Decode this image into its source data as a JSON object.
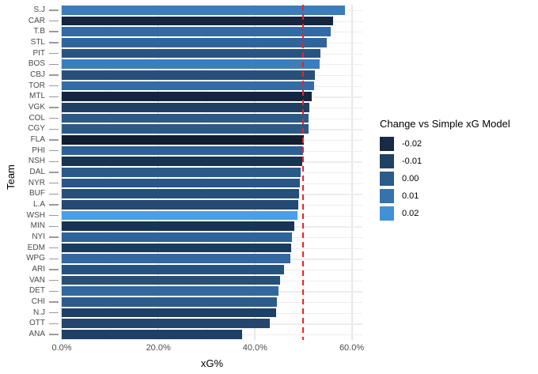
{
  "chart_data": {
    "type": "bar",
    "orientation": "horizontal",
    "title": "",
    "xlabel": "xG%",
    "ylabel": "Team",
    "xlim": [
      0,
      62.2
    ],
    "grid": true,
    "x_ticks": [
      {
        "value": 0,
        "label": "0.0%"
      },
      {
        "value": 20,
        "label": "20.0%"
      },
      {
        "value": 40,
        "label": "40.0%"
      },
      {
        "value": 60,
        "label": "60.0%"
      }
    ],
    "x_minor_ticks": [
      10,
      30,
      50
    ],
    "reference_line": {
      "value": 50,
      "color": "#EE2222",
      "style": "dashed"
    },
    "categories": [
      "S.J",
      "CAR",
      "T.B",
      "STL",
      "PIT",
      "BOS",
      "CBJ",
      "TOR",
      "MTL",
      "VGK",
      "COL",
      "CGY",
      "FLA",
      "PHI",
      "NSH",
      "DAL",
      "NYR",
      "BUF",
      "L.A",
      "WSH",
      "MIN",
      "NYI",
      "EDM",
      "WPG",
      "ARI",
      "VAN",
      "DET",
      "CHI",
      "N.J",
      "OTT",
      "ANA"
    ],
    "values": [
      58.6,
      56.2,
      55.7,
      54.9,
      53.5,
      53.3,
      52.3,
      52.2,
      51.8,
      51.2,
      51.1,
      51.0,
      50.1,
      49.9,
      49.7,
      49.5,
      49.3,
      49.1,
      48.9,
      48.7,
      48.1,
      47.6,
      47.4,
      47.3,
      46.0,
      45.2,
      44.8,
      44.6,
      44.4,
      43.0,
      37.4
    ],
    "bar_colors": [
      "#3B7CBA",
      "#16273F",
      "#316AA6",
      "#30659C",
      "#2A5480",
      "#3C7EBC",
      "#27507A",
      "#336DA9",
      "#15253D",
      "#1F3F63",
      "#2B5A89",
      "#2B5A89",
      "#111D31",
      "#2D6096",
      "#1B3353",
      "#2B5A89",
      "#295683",
      "#264F7B",
      "#234A73",
      "#4B9DE8",
      "#1B3456",
      "#2F639B",
      "#1D3A5D",
      "#32689F",
      "#26527E",
      "#25507B",
      "#32689E",
      "#2C5C8E",
      "#1F4066",
      "#24466E",
      "#1F3F66"
    ],
    "legend": {
      "title": "Change vs Simple xG Model",
      "position": "right",
      "entries": [
        {
          "label": "-0.02",
          "color": "#182A45"
        },
        {
          "label": "-0.01",
          "color": "#214165"
        },
        {
          "label": "0.00",
          "color": "#2B5C8A"
        },
        {
          "label": "0.01",
          "color": "#3573AD"
        },
        {
          "label": "0.02",
          "color": "#4290D5"
        }
      ]
    }
  },
  "layout_colors": {
    "major_grid": "#e7e7e7",
    "minor_grid": "#f2f2f2",
    "row_grid": "#ededed",
    "tick": "#9a9a9a",
    "axis_text": "#4d4d4d"
  }
}
